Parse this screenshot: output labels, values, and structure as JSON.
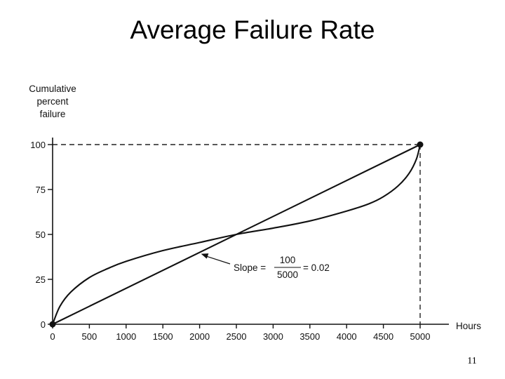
{
  "slide": {
    "title": "Average Failure Rate",
    "page_number": "11"
  },
  "chart_data": {
    "type": "line",
    "title": "",
    "ylabel_lines": [
      "Cumulative",
      "percent",
      "failure"
    ],
    "xlabel": "Hours",
    "xlim": [
      0,
      5000
    ],
    "ylim": [
      0,
      100
    ],
    "x_ticks": [
      0,
      500,
      1000,
      1500,
      2000,
      2500,
      3000,
      3500,
      4000,
      4500,
      5000
    ],
    "y_ticks": [
      0,
      25,
      50,
      75,
      100
    ],
    "grid": false,
    "series": [
      {
        "x": [
          0,
          5000
        ],
        "y": [
          0,
          100
        ]
      },
      {
        "x": [
          0,
          100,
          250,
          500,
          750,
          1000,
          1500,
          2000,
          2500,
          3000,
          3500,
          4000,
          4300,
          4500,
          4700,
          4850,
          4950,
          5000
        ],
        "y": [
          0,
          10,
          18,
          26,
          31,
          35,
          41,
          45.5,
          50,
          53.5,
          57.5,
          63,
          67,
          71,
          77,
          84,
          92,
          100
        ]
      }
    ],
    "reference_lines": [
      {
        "from": [
          0,
          100
        ],
        "to": [
          5000,
          100
        ],
        "style": "dashed"
      },
      {
        "from": [
          5000,
          100
        ],
        "to": [
          5000,
          0
        ],
        "style": "dashed"
      }
    ],
    "annotation": {
      "prefix": "Slope =",
      "numerator": "100",
      "denominator": "5000",
      "suffix": "= 0.02",
      "arrow_target": [
        2000,
        40
      ]
    }
  }
}
